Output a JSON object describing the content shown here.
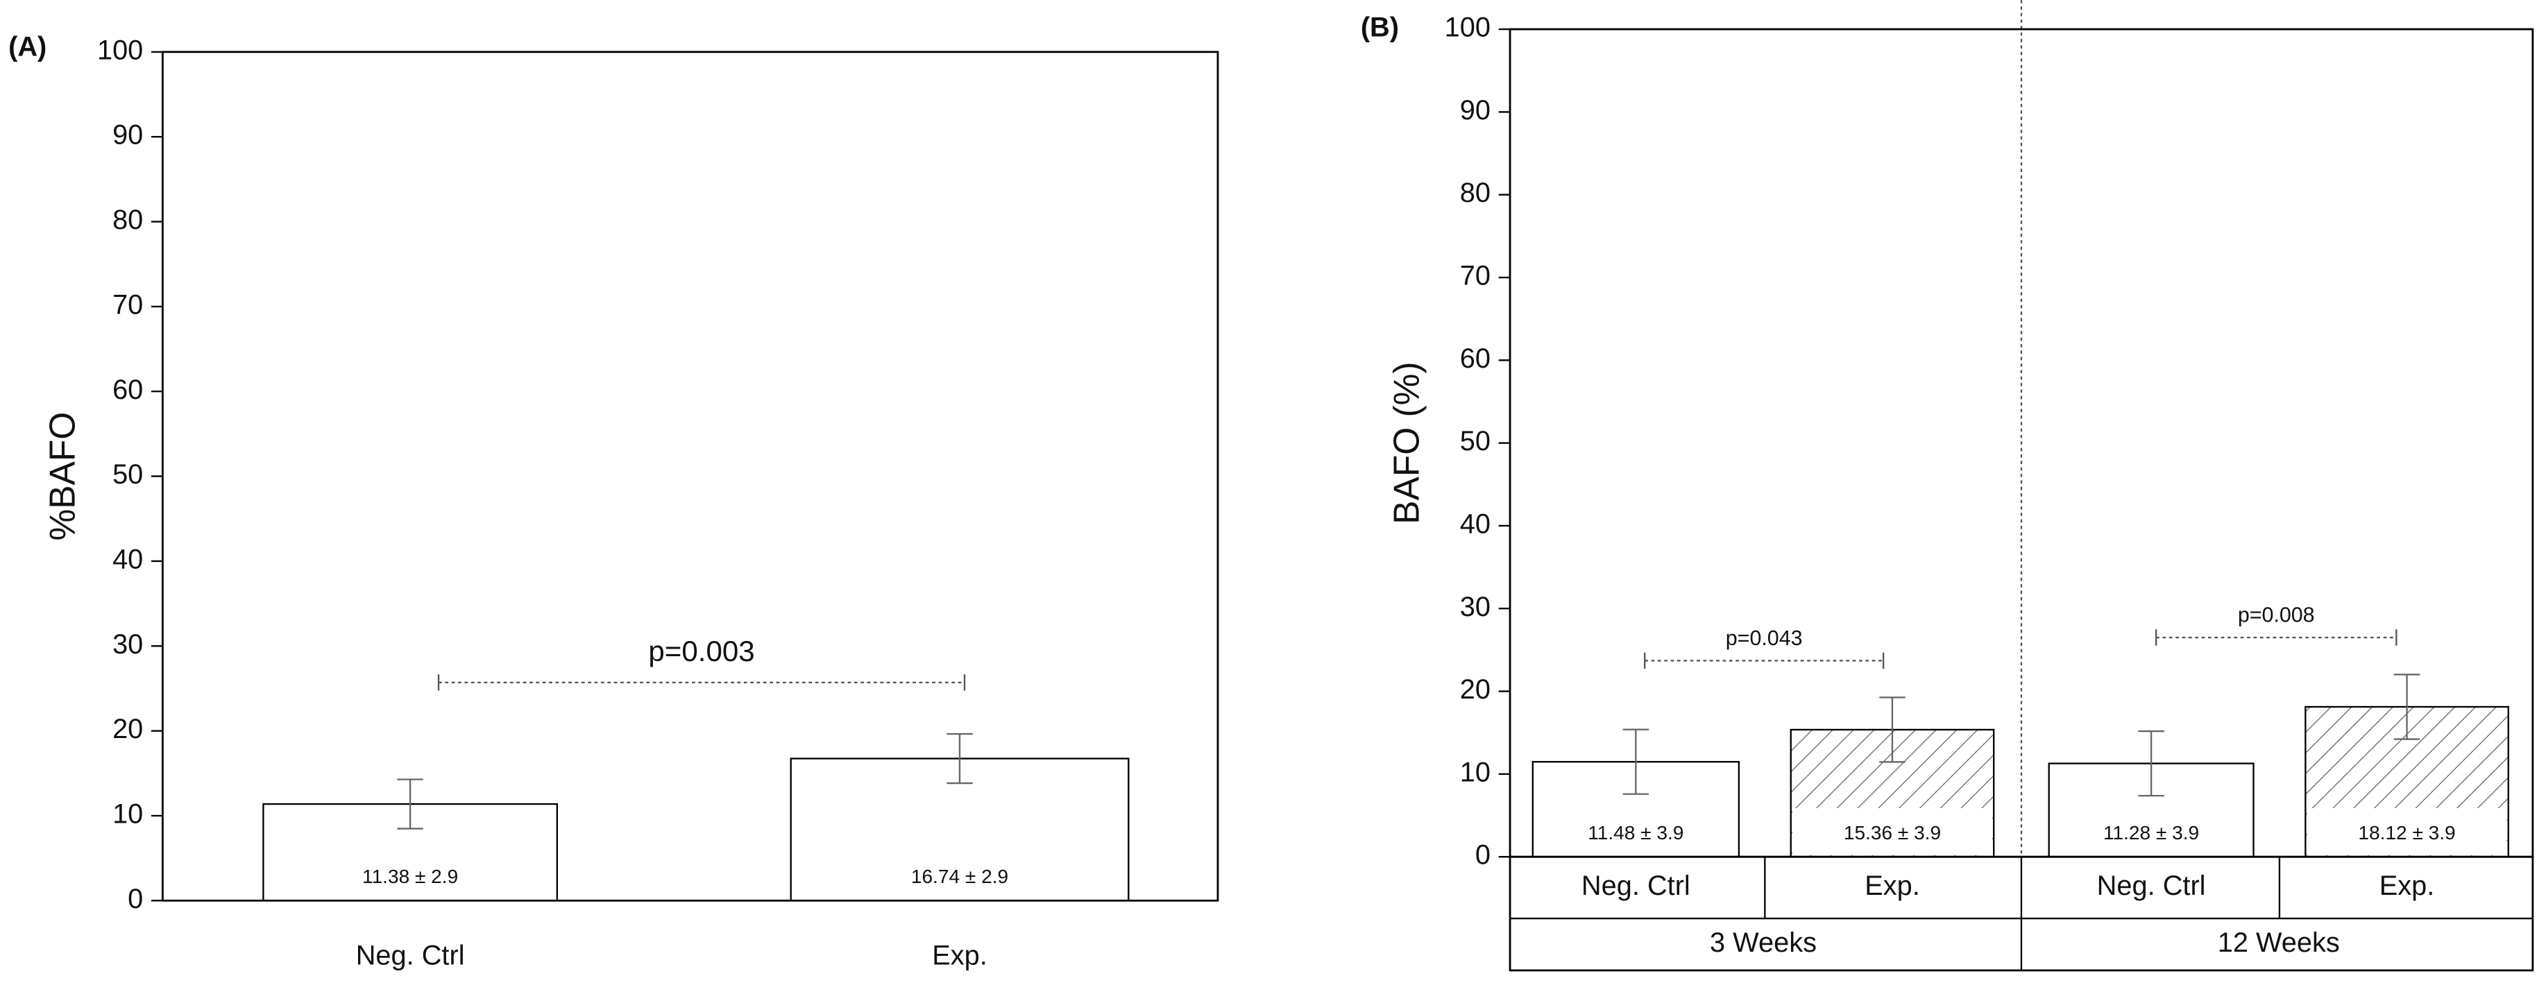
{
  "chart_data": [
    {
      "type": "bar",
      "panel_label": "(A)",
      "ylabel": "%BAFO",
      "categories": [
        "Neg. Ctrl",
        "Exp."
      ],
      "values": [
        11.38,
        16.74
      ],
      "errors": [
        2.9,
        2.9
      ],
      "value_labels": [
        "11.38 ± 2.9",
        "16.74 ± 2.9"
      ],
      "color": "#ffffff",
      "hatch": [
        false,
        false
      ],
      "ylim": [
        0,
        100
      ],
      "yticks": [
        0,
        10,
        20,
        30,
        40,
        50,
        60,
        70,
        80,
        90,
        100
      ],
      "annotations": [
        {
          "text": "p=0.003",
          "y": 25.7
        }
      ]
    },
    {
      "type": "bar",
      "panel_label": "(B)",
      "ylabel": "BAFO (%)",
      "categories": [
        "Neg. Ctrl",
        "Exp.",
        "Neg. Ctrl",
        "Exp."
      ],
      "groups": [
        "3 Weeks",
        "12 Weeks"
      ],
      "values": [
        11.48,
        15.36,
        11.28,
        18.12
      ],
      "errors": [
        3.9,
        3.9,
        3.9,
        3.9
      ],
      "value_labels": [
        "11.48 ± 3.9",
        "15.36 ± 3.9",
        "11.28 ± 3.9",
        "18.12 ± 3.9"
      ],
      "color": "#ffffff",
      "hatch": [
        false,
        true,
        false,
        true
      ],
      "ylim": [
        0,
        100
      ],
      "yticks": [
        0,
        10,
        20,
        30,
        40,
        50,
        60,
        70,
        80,
        90,
        100
      ],
      "annotations": [
        {
          "text": "p=0.043",
          "y": 23.7
        },
        {
          "text": "p=0.008",
          "y": 26.5
        }
      ]
    }
  ]
}
